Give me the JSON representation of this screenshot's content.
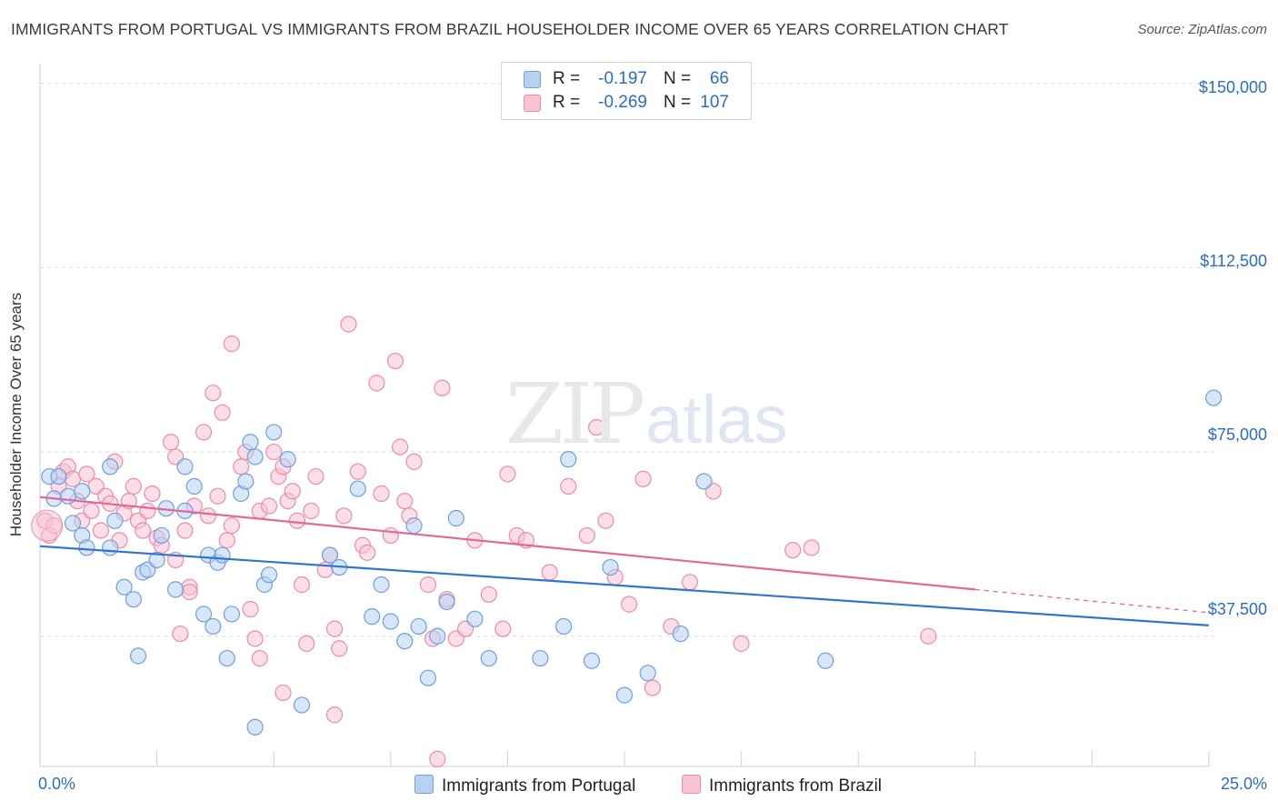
{
  "title": "IMMIGRANTS FROM PORTUGAL VS IMMIGRANTS FROM BRAZIL HOUSEHOLDER INCOME OVER 65 YEARS CORRELATION CHART",
  "source": "Source: ZipAtlas.com",
  "watermark": {
    "zip": "ZIP",
    "atlas": "atlas"
  },
  "legend_top": {
    "rows": [
      {
        "r_label": "R =",
        "r_value": "-0.197",
        "n_label": "N =",
        "n_value": "66",
        "color": "#a9c9f1"
      },
      {
        "r_label": "R =",
        "r_value": "-0.269",
        "n_label": "N =",
        "n_value": "107",
        "color": "#f5b8cc"
      }
    ]
  },
  "colors": {
    "portugal_fill": "#b7d1f3",
    "portugal_stroke": "#6f9fdc",
    "portugal_line": "#2f74cf",
    "brazil_fill": "#f7c3d3",
    "brazil_stroke": "#ec8cab",
    "brazil_line": "#e4679a",
    "axis_label": "#2b6cc4",
    "grid": "#d9d9d9"
  },
  "chart_data": {
    "type": "scatter",
    "title": "IMMIGRANTS FROM PORTUGAL VS IMMIGRANTS FROM BRAZIL HOUSEHOLDER INCOME OVER 65 YEARS CORRELATION CHART",
    "xlabel": "",
    "ylabel": "Householder Income Over 65 years",
    "xlim": [
      0,
      25
    ],
    "ylim": [
      11000,
      154000
    ],
    "x_tick_labels": [
      "0.0%",
      "25.0%"
    ],
    "y_ticks": [
      37500,
      75000,
      112500,
      150000
    ],
    "y_tick_labels": [
      "$37,500",
      "$75,000",
      "$112,500",
      "$150,000"
    ],
    "grid": true,
    "series": [
      {
        "name": "Immigrants from Portugal",
        "R": -0.197,
        "N": 66,
        "trend": {
          "x0": 0.0,
          "y0": 55800,
          "x1": 25.0,
          "y1": 39700
        },
        "points": [
          [
            0.2,
            70000
          ],
          [
            0.4,
            70000
          ],
          [
            0.3,
            65500
          ],
          [
            0.6,
            66000
          ],
          [
            0.9,
            67000
          ],
          [
            0.7,
            60500
          ],
          [
            0.9,
            58000
          ],
          [
            1.0,
            55500
          ],
          [
            1.5,
            72000
          ],
          [
            1.5,
            55500
          ],
          [
            1.6,
            61000
          ],
          [
            1.8,
            47500
          ],
          [
            2.0,
            45000
          ],
          [
            2.2,
            50500
          ],
          [
            2.3,
            51000
          ],
          [
            2.1,
            33500
          ],
          [
            2.5,
            53000
          ],
          [
            2.6,
            58000
          ],
          [
            2.7,
            63500
          ],
          [
            2.9,
            47000
          ],
          [
            3.1,
            72000
          ],
          [
            3.1,
            63000
          ],
          [
            3.3,
            68000
          ],
          [
            3.5,
            42000
          ],
          [
            3.6,
            54000
          ],
          [
            3.7,
            39500
          ],
          [
            3.8,
            52500
          ],
          [
            3.9,
            54000
          ],
          [
            4.0,
            33000
          ],
          [
            4.1,
            42000
          ],
          [
            4.3,
            66500
          ],
          [
            4.4,
            69000
          ],
          [
            4.5,
            77000
          ],
          [
            4.6,
            74000
          ],
          [
            4.6,
            19000
          ],
          [
            4.8,
            48000
          ],
          [
            4.9,
            50000
          ],
          [
            5.0,
            79000
          ],
          [
            5.3,
            73500
          ],
          [
            5.6,
            23500
          ],
          [
            6.2,
            54000
          ],
          [
            6.4,
            51500
          ],
          [
            6.8,
            67500
          ],
          [
            7.1,
            41500
          ],
          [
            7.3,
            48000
          ],
          [
            7.5,
            40500
          ],
          [
            7.8,
            36500
          ],
          [
            8.0,
            60000
          ],
          [
            8.1,
            39500
          ],
          [
            8.3,
            29000
          ],
          [
            8.5,
            37500
          ],
          [
            8.7,
            44500
          ],
          [
            8.9,
            61500
          ],
          [
            9.3,
            41000
          ],
          [
            9.6,
            33000
          ],
          [
            10.7,
            33000
          ],
          [
            11.2,
            39500
          ],
          [
            11.3,
            73500
          ],
          [
            11.8,
            32500
          ],
          [
            12.2,
            51500
          ],
          [
            12.5,
            25500
          ],
          [
            13.0,
            30000
          ],
          [
            13.7,
            38000
          ],
          [
            14.2,
            69000
          ],
          [
            16.8,
            32500
          ],
          [
            25.1,
            86000
          ]
        ]
      },
      {
        "name": "Immigrants from Brazil",
        "R": -0.269,
        "N": 107,
        "trend": {
          "x0": 0.0,
          "y0": 65800,
          "x1": 20.0,
          "y1": 47000,
          "dash_to": {
            "x": 25.0,
            "y": 42300
          }
        },
        "points": [
          [
            0.1,
            61000
          ],
          [
            0.2,
            58000
          ],
          [
            0.3,
            60000
          ],
          [
            0.4,
            68000
          ],
          [
            0.5,
            71000
          ],
          [
            0.6,
            72000
          ],
          [
            0.7,
            69500
          ],
          [
            0.8,
            65000
          ],
          [
            0.9,
            61000
          ],
          [
            1.0,
            70500
          ],
          [
            1.1,
            63000
          ],
          [
            1.2,
            68000
          ],
          [
            1.3,
            59000
          ],
          [
            1.4,
            66000
          ],
          [
            1.5,
            64500
          ],
          [
            1.6,
            73000
          ],
          [
            1.7,
            57000
          ],
          [
            1.8,
            62500
          ],
          [
            1.9,
            65000
          ],
          [
            2.0,
            68000
          ],
          [
            2.1,
            61000
          ],
          [
            2.2,
            59000
          ],
          [
            2.3,
            63000
          ],
          [
            2.4,
            66500
          ],
          [
            2.5,
            57500
          ],
          [
            2.6,
            56000
          ],
          [
            2.8,
            77000
          ],
          [
            2.9,
            74000
          ],
          [
            2.9,
            53000
          ],
          [
            3.0,
            38000
          ],
          [
            3.1,
            59000
          ],
          [
            3.2,
            47500
          ],
          [
            3.3,
            64000
          ],
          [
            3.5,
            79000
          ],
          [
            3.6,
            62000
          ],
          [
            3.7,
            87000
          ],
          [
            3.8,
            66000
          ],
          [
            3.9,
            83000
          ],
          [
            4.0,
            57000
          ],
          [
            4.1,
            60000
          ],
          [
            4.1,
            97000
          ],
          [
            4.3,
            72000
          ],
          [
            4.4,
            75000
          ],
          [
            4.5,
            43000
          ],
          [
            4.6,
            37000
          ],
          [
            4.7,
            33000
          ],
          [
            4.7,
            63000
          ],
          [
            4.9,
            64000
          ],
          [
            5.0,
            75000
          ],
          [
            5.1,
            70000
          ],
          [
            5.2,
            72000
          ],
          [
            5.3,
            65000
          ],
          [
            5.4,
            67000
          ],
          [
            5.5,
            61000
          ],
          [
            5.6,
            48000
          ],
          [
            5.7,
            36000
          ],
          [
            5.8,
            63000
          ],
          [
            5.9,
            70000
          ],
          [
            6.1,
            51000
          ],
          [
            6.2,
            54000
          ],
          [
            6.3,
            39000
          ],
          [
            6.4,
            35000
          ],
          [
            6.5,
            62000
          ],
          [
            6.6,
            101000
          ],
          [
            6.8,
            71000
          ],
          [
            6.9,
            56000
          ],
          [
            7.0,
            54500
          ],
          [
            7.2,
            89000
          ],
          [
            7.3,
            66500
          ],
          [
            7.5,
            58000
          ],
          [
            7.6,
            93500
          ],
          [
            7.7,
            76000
          ],
          [
            7.8,
            65000
          ],
          [
            7.9,
            62000
          ],
          [
            8.0,
            73000
          ],
          [
            8.3,
            48000
          ],
          [
            8.4,
            37000
          ],
          [
            8.6,
            88000
          ],
          [
            8.7,
            45000
          ],
          [
            8.9,
            37000
          ],
          [
            9.1,
            39000
          ],
          [
            9.3,
            57000
          ],
          [
            9.6,
            46000
          ],
          [
            10.0,
            70500
          ],
          [
            10.2,
            58000
          ],
          [
            10.4,
            57000
          ],
          [
            10.9,
            50500
          ],
          [
            11.3,
            68000
          ],
          [
            11.7,
            58000
          ],
          [
            11.9,
            80000
          ],
          [
            12.1,
            61000
          ],
          [
            12.3,
            49500
          ],
          [
            12.6,
            44000
          ],
          [
            12.9,
            69500
          ],
          [
            13.1,
            27000
          ],
          [
            13.5,
            39500
          ],
          [
            13.9,
            48500
          ],
          [
            14.4,
            67000
          ],
          [
            15.0,
            36000
          ],
          [
            16.1,
            55000
          ],
          [
            16.5,
            55500
          ],
          [
            19.0,
            37500
          ],
          [
            6.3,
            21500
          ],
          [
            8.5,
            12500
          ],
          [
            3.2,
            46500
          ],
          [
            5.2,
            26000
          ],
          [
            9.9,
            39000
          ]
        ]
      }
    ]
  },
  "legend_bottom": [
    {
      "label": "Immigrants from Portugal",
      "color": "#b7d1f3"
    },
    {
      "label": "Immigrants from Brazil",
      "color": "#f7c3d3"
    }
  ]
}
